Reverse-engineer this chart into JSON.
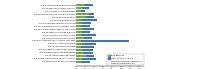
{
  "labels": [
    "Site 5 Peterborough Regional Infirmary",
    "Site 17 Newcastle Hospital (Dumfries)",
    "Site 2 Craigavon Hospital, Armagh",
    "Site 14 Belfast Royal Victoria Hosp (1370 days)",
    "Site 16 Leicester Infirmary",
    "Site 19 Kings College London",
    "Site 1 London Guy Royal London Hospital",
    "Site 12 London East London Community cent H",
    "Site 18 Glasgow Hospital, Newcastle upon Tyne",
    "Site 10 Royal Victoria Hosp, Ormshire",
    "Site 8 Southampton Hospital, Oxford",
    "Site 9 Stoke-on-Trent Hospital, Bolton",
    "Site 19 Gloucestershire Royal victoria 1370 days",
    "Site 19 Gloucester City Hospital",
    "Site 19 Cambridge, Cambridge",
    "Site 13 St Bart's London Solihull Infirmary",
    "Site 9 Leeds London University Hospitals",
    "Site 16 Sheffield Teaching Hospital",
    "Site 5 Edinburgh and Heriot University Hospital",
    "Site 19 Northampton General Hospital"
  ],
  "green_values": [
    18,
    15,
    10,
    28,
    22,
    12,
    10,
    12,
    15,
    14,
    12,
    18,
    12,
    14,
    12,
    14,
    15,
    22,
    14,
    10
  ],
  "blue_values": [
    20,
    14,
    10,
    12,
    18,
    35,
    22,
    18,
    25,
    16,
    32,
    18,
    105,
    30,
    28,
    24,
    22,
    18,
    30,
    20
  ],
  "green_color": "#70ad47",
  "blue_color": "#4472c4",
  "legend_line1": "R&D approval",
  "legend_line2": "Approval to first recruit",
  "legend_line3": "From R&D approval (cumulative)",
  "legend_line4": "From IRAS approval date",
  "bar_height": 0.7,
  "figsize": [
    2.0,
    0.69
  ],
  "dpi": 100,
  "xlim": 150
}
